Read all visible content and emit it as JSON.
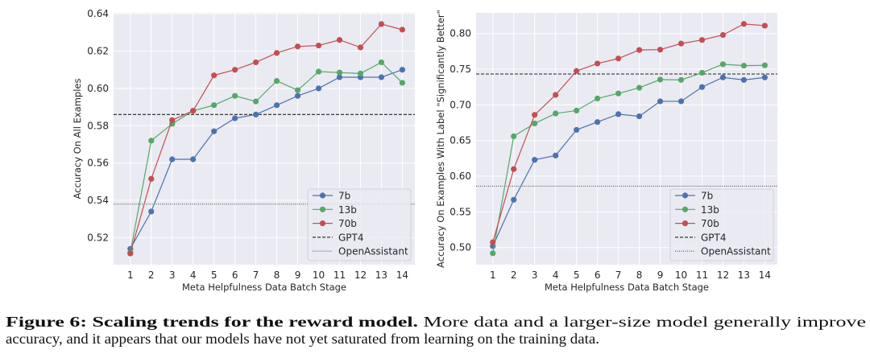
{
  "chart_data": [
    {
      "type": "line",
      "xlabel": "Meta Helpfulness Data Batch Stage",
      "ylabel": "Accuracy On All Examples",
      "x": [
        1,
        2,
        3,
        4,
        5,
        6,
        7,
        8,
        9,
        10,
        11,
        12,
        13,
        14
      ],
      "ylim": [
        0.5055,
        0.6405
      ],
      "xlim": [
        0.2,
        14.6
      ],
      "yticks": [
        0.52,
        0.54,
        0.56,
        0.58,
        0.6,
        0.62,
        0.64
      ],
      "ytick_labels": [
        "0.52",
        "0.54",
        "0.56",
        "0.58",
        "0.60",
        "0.62",
        "0.64"
      ],
      "grid": true,
      "legend_position": "lower-right",
      "series": [
        {
          "name": "7b",
          "color": "#4c72b0",
          "values": [
            0.514,
            0.534,
            0.562,
            0.562,
            0.577,
            0.584,
            0.586,
            0.591,
            0.596,
            0.6,
            0.606,
            0.606,
            0.606,
            0.61
          ]
        },
        {
          "name": "13b",
          "color": "#55a868",
          "values": [
            0.512,
            0.572,
            0.581,
            0.588,
            0.591,
            0.596,
            0.593,
            0.604,
            0.599,
            0.609,
            0.6085,
            0.608,
            0.614,
            0.603
          ]
        },
        {
          "name": "70b",
          "color": "#c44e52",
          "values": [
            0.5115,
            0.5515,
            0.583,
            0.588,
            0.607,
            0.61,
            0.614,
            0.619,
            0.6225,
            0.623,
            0.626,
            0.622,
            0.6345,
            0.6315
          ]
        }
      ],
      "reference_lines": [
        {
          "name": "GPT4",
          "value": 0.586,
          "style": "dashed",
          "color": "#222222"
        },
        {
          "name": "OpenAssistant",
          "value": 0.538,
          "style": "dotted",
          "color": "#555555"
        }
      ]
    },
    {
      "type": "line",
      "xlabel": "Meta Helpfulness Data Batch Stage",
      "ylabel": "Accuracy On Examples With Label \"Significantly Better\"",
      "x": [
        1,
        2,
        3,
        4,
        5,
        6,
        7,
        8,
        9,
        10,
        11,
        12,
        13,
        14
      ],
      "ylim": [
        0.476,
        0.829
      ],
      "xlim": [
        0.2,
        14.6
      ],
      "yticks": [
        0.5,
        0.55,
        0.6,
        0.65,
        0.7,
        0.75,
        0.8
      ],
      "ytick_labels": [
        "0.50",
        "0.55",
        "0.60",
        "0.65",
        "0.70",
        "0.75",
        "0.80"
      ],
      "grid": true,
      "legend_position": "lower-right",
      "series": [
        {
          "name": "7b",
          "color": "#4c72b0",
          "values": [
            0.502,
            0.567,
            0.623,
            0.629,
            0.665,
            0.676,
            0.687,
            0.684,
            0.705,
            0.705,
            0.725,
            0.7385,
            0.735,
            0.7385
          ]
        },
        {
          "name": "13b",
          "color": "#55a868",
          "values": [
            0.492,
            0.656,
            0.674,
            0.688,
            0.692,
            0.709,
            0.716,
            0.724,
            0.7355,
            0.735,
            0.745,
            0.757,
            0.755,
            0.7555
          ]
        },
        {
          "name": "70b",
          "color": "#c44e52",
          "values": [
            0.5075,
            0.61,
            0.686,
            0.714,
            0.7475,
            0.758,
            0.765,
            0.777,
            0.7775,
            0.786,
            0.791,
            0.798,
            0.8135,
            0.811
          ]
        }
      ],
      "reference_lines": [
        {
          "name": "GPT4",
          "value": 0.7433,
          "style": "dashed",
          "color": "#222222"
        },
        {
          "name": "OpenAssistant",
          "value": 0.586,
          "style": "dotted",
          "color": "#555555"
        }
      ]
    }
  ],
  "caption": {
    "label": "Figure 6:",
    "title": "Scaling trends for the reward model.",
    "line1_text": "More data and a larger-size model generally improve",
    "line2_text": "accuracy, and it appears that our models have not yet saturated from learning on the training data."
  }
}
